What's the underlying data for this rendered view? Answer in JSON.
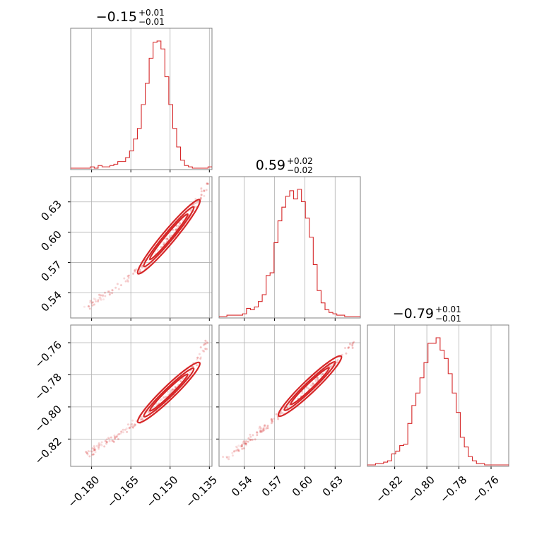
{
  "chart_data": {
    "type": "corner",
    "color": "#d62728",
    "titles": [
      {
        "value": "−0.15",
        "upper": "+0.01",
        "lower": "−0.01"
      },
      {
        "value": "0.59",
        "upper": "+0.02",
        "lower": "−0.02"
      },
      {
        "value": "−0.79",
        "upper": "+0.01",
        "lower": "−0.01"
      }
    ],
    "axes": [
      {
        "lim": [
          -0.188,
          -0.134
        ],
        "ticks": [
          -0.18,
          -0.165,
          -0.15,
          -0.135
        ],
        "tick_labels": [
          "−0.180",
          "−0.165",
          "−0.150",
          "−0.135"
        ]
      },
      {
        "lim": [
          0.515,
          0.655
        ],
        "ticks": [
          0.54,
          0.57,
          0.6,
          0.63
        ],
        "tick_labels": [
          "0.54",
          "0.57",
          "0.60",
          "0.63"
        ]
      },
      {
        "lim": [
          -0.837,
          -0.749
        ],
        "ticks": [
          -0.82,
          -0.8,
          -0.78,
          -0.76
        ],
        "tick_labels": [
          "−0.82",
          "−0.80",
          "−0.78",
          "−0.76"
        ]
      }
    ],
    "histograms": [
      {
        "param": 0,
        "values": [
          0,
          0,
          0,
          0,
          0,
          1,
          0,
          2,
          1,
          1,
          2,
          3,
          5,
          5,
          8,
          13,
          22,
          30,
          48,
          64,
          83,
          95,
          96,
          90,
          69,
          48,
          30,
          16,
          6,
          2,
          1,
          0,
          0,
          0,
          0,
          1
        ]
      },
      {
        "param": 1,
        "values": [
          0,
          0,
          1,
          1,
          1,
          1,
          2,
          6,
          5,
          7,
          11,
          16,
          30,
          32,
          54,
          70,
          80,
          88,
          92,
          86,
          93,
          84,
          72,
          58,
          38,
          19,
          10,
          5,
          3,
          2,
          1,
          1,
          0,
          0,
          0,
          0
        ]
      },
      {
        "param": 2,
        "values": [
          0,
          0,
          1,
          1,
          2,
          3,
          8,
          10,
          14,
          15,
          30,
          43,
          52,
          63,
          74,
          88,
          88,
          92,
          83,
          77,
          66,
          52,
          38,
          20,
          13,
          6,
          3,
          1,
          1,
          0,
          0,
          0,
          0,
          0,
          0
        ]
      }
    ],
    "pairs": [
      {
        "x": 0,
        "y": 1,
        "curve": [
          [
            -0.184,
            0.522
          ],
          [
            -0.172,
            0.542
          ],
          [
            -0.16,
            0.566
          ],
          [
            -0.15,
            0.594
          ],
          [
            -0.141,
            0.625
          ],
          [
            -0.135,
            0.65
          ]
        ],
        "scatter_x_range": [
          -0.182,
          -0.135
        ]
      },
      {
        "x": 0,
        "y": 2,
        "curve": [
          [
            -0.184,
            -0.832
          ],
          [
            -0.172,
            -0.82
          ],
          [
            -0.16,
            -0.806
          ],
          [
            -0.15,
            -0.792
          ],
          [
            -0.141,
            -0.776
          ],
          [
            -0.135,
            -0.757
          ]
        ],
        "scatter_x_range": [
          -0.182,
          -0.135
        ]
      },
      {
        "x": 1,
        "y": 2,
        "curve": [
          [
            0.52,
            -0.833
          ],
          [
            0.55,
            -0.818
          ],
          [
            0.58,
            -0.802
          ],
          [
            0.6,
            -0.79
          ],
          [
            0.63,
            -0.772
          ],
          [
            0.65,
            -0.759
          ]
        ],
        "scatter_x_range": [
          0.52,
          0.648
        ]
      }
    ]
  }
}
